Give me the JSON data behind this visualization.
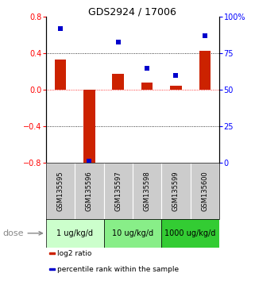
{
  "title": "GDS2924 / 17006",
  "samples": [
    "GSM135595",
    "GSM135596",
    "GSM135597",
    "GSM135598",
    "GSM135599",
    "GSM135600"
  ],
  "log2_ratio": [
    0.33,
    -0.82,
    0.18,
    0.08,
    0.05,
    0.43
  ],
  "percentile_rank": [
    92,
    1,
    83,
    65,
    60,
    87
  ],
  "bar_color": "#cc2200",
  "dot_color": "#0000cc",
  "ylim_left": [
    -0.8,
    0.8
  ],
  "ylim_right": [
    0,
    100
  ],
  "yticks_left": [
    -0.8,
    -0.4,
    0.0,
    0.4,
    0.8
  ],
  "yticks_right": [
    0,
    25,
    50,
    75,
    100
  ],
  "ytick_labels_right": [
    "0",
    "25",
    "50",
    "75",
    "100%"
  ],
  "dose_groups": [
    {
      "label": "1 ug/kg/d",
      "color": "#ccffcc",
      "start": 0,
      "end": 2
    },
    {
      "label": "10 ug/kg/d",
      "color": "#88ee88",
      "start": 2,
      "end": 4
    },
    {
      "label": "1000 ug/kg/d",
      "color": "#33cc33",
      "start": 4,
      "end": 6
    }
  ],
  "dose_label": "dose",
  "legend_items": [
    {
      "label": "log2 ratio",
      "color": "#cc2200"
    },
    {
      "label": "percentile rank within the sample",
      "color": "#0000cc"
    }
  ],
  "bg_color": "#cccccc",
  "title_fontsize": 9,
  "tick_fontsize": 7,
  "sample_fontsize": 6,
  "dose_fontsize": 7,
  "legend_fontsize": 6.5
}
